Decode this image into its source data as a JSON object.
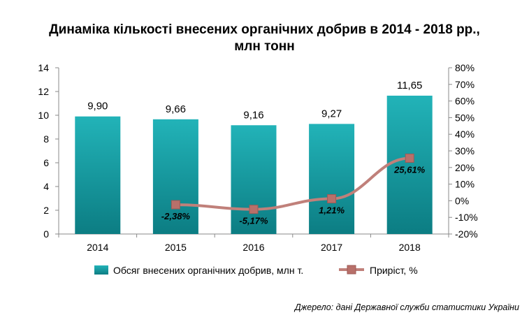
{
  "chart_data": {
    "type": "bar",
    "title": "Динаміка кількості внесених органічних добрив в 2014 - 2018 рр.,",
    "subtitle": "млн тонн",
    "categories": [
      "2014",
      "2015",
      "2016",
      "2017",
      "2018"
    ],
    "series": [
      {
        "name": "Обсяг внесених  органічних добрив, млн т.",
        "type": "bar",
        "axis": "left",
        "color": "#1aa3a8",
        "values": [
          9.9,
          9.66,
          9.16,
          9.27,
          11.65
        ],
        "labels": [
          "9,90",
          "9,66",
          "9,16",
          "9,27",
          "11,65"
        ]
      },
      {
        "name": "Приріст, %",
        "type": "line",
        "axis": "right",
        "color": "#c0807a",
        "values": [
          null,
          -2.38,
          -5.17,
          1.21,
          25.61
        ],
        "labels": [
          null,
          "-2,38%",
          "-5,17%",
          "1,21%",
          "25,61%"
        ]
      }
    ],
    "y_left": {
      "range": [
        0,
        14
      ],
      "ticks": [
        0,
        2,
        4,
        6,
        8,
        10,
        12,
        14
      ],
      "tick_labels": [
        "0",
        "2",
        "4",
        "6",
        "8",
        "10",
        "12",
        "14"
      ]
    },
    "y_right": {
      "range": [
        -20,
        80
      ],
      "ticks": [
        -20,
        -10,
        0,
        10,
        20,
        30,
        40,
        50,
        60,
        70,
        80
      ],
      "tick_labels": [
        "-20%",
        "-10%",
        "0%",
        "10%",
        "20%",
        "30%",
        "40%",
        "50%",
        "60%",
        "70%",
        "80%"
      ]
    },
    "grid": false,
    "legend_position": "bottom"
  },
  "source": "Джерело: дані Державної служби статистики України"
}
